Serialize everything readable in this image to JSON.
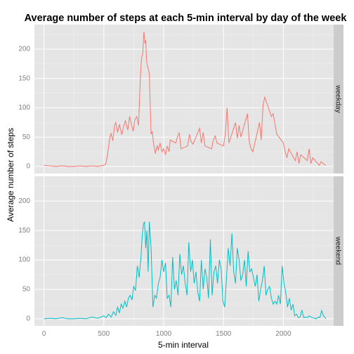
{
  "chart_data": {
    "type": "line",
    "title": "Average number of steps at each 5-min interval by day of the week",
    "xlabel": "5-min interval",
    "ylabel": "Average number of steps",
    "xlim": [
      -80,
      2420
    ],
    "ylim": [
      -12,
      242
    ],
    "x_ticks": [
      0,
      500,
      1000,
      1500,
      2000
    ],
    "y_ticks": [
      0,
      50,
      100,
      150,
      200
    ],
    "grid": true,
    "panels": [
      {
        "name": "weekday",
        "color": "#F8766D",
        "x": [
          0,
          50,
          100,
          150,
          200,
          250,
          300,
          350,
          400,
          450,
          500,
          515,
          530,
          550,
          560,
          575,
          590,
          600,
          615,
          630,
          650,
          665,
          680,
          700,
          715,
          730,
          745,
          760,
          775,
          790,
          805,
          815,
          825,
          835,
          845,
          850,
          855,
          860,
          870,
          880,
          895,
          905,
          915,
          930,
          945,
          955,
          970,
          985,
          1000,
          1015,
          1030,
          1045,
          1055,
          1100,
          1115,
          1130,
          1145,
          1200,
          1215,
          1230,
          1245,
          1300,
          1315,
          1330,
          1345,
          1400,
          1415,
          1430,
          1445,
          1500,
          1515,
          1530,
          1545,
          1600,
          1615,
          1630,
          1645,
          1700,
          1715,
          1730,
          1745,
          1800,
          1815,
          1830,
          1845,
          1900,
          1915,
          1930,
          1945,
          2000,
          2015,
          2030,
          2045,
          2100,
          2115,
          2130,
          2145,
          2200,
          2215,
          2230,
          2245,
          2300,
          2315,
          2330,
          2345,
          2355
        ],
        "values": [
          2,
          1,
          0,
          1,
          0,
          0,
          1,
          0,
          1,
          0,
          2,
          4,
          18,
          50,
          56,
          44,
          70,
          75,
          58,
          72,
          54,
          68,
          78,
          62,
          85,
          72,
          60,
          80,
          85,
          70,
          150,
          185,
          192,
          230,
          210,
          215,
          190,
          175,
          168,
          158,
          55,
          60,
          40,
          22,
          35,
          28,
          40,
          25,
          30,
          20,
          35,
          25,
          45,
          40,
          50,
          58,
          30,
          35,
          55,
          42,
          38,
          65,
          40,
          58,
          35,
          30,
          45,
          52,
          40,
          35,
          55,
          100,
          40,
          75,
          48,
          70,
          50,
          90,
          42,
          30,
          25,
          75,
          45,
          105,
          118,
          85,
          90,
          72,
          55,
          40,
          25,
          15,
          30,
          10,
          25,
          5,
          20,
          10,
          30,
          5,
          15,
          2,
          8,
          5,
          3,
          2
        ],
        "strip_label": "weekday"
      },
      {
        "name": "weekend",
        "color": "#00BFC4",
        "x": [
          0,
          50,
          100,
          150,
          200,
          250,
          300,
          350,
          400,
          450,
          500,
          520,
          540,
          560,
          580,
          600,
          615,
          630,
          645,
          660,
          675,
          690,
          705,
          720,
          735,
          750,
          765,
          780,
          795,
          810,
          820,
          830,
          840,
          850,
          860,
          870,
          880,
          895,
          910,
          925,
          940,
          955,
          970,
          985,
          1000,
          1015,
          1030,
          1045,
          1060,
          1075,
          1090,
          1105,
          1120,
          1135,
          1150,
          1165,
          1180,
          1195,
          1210,
          1225,
          1240,
          1255,
          1270,
          1285,
          1300,
          1315,
          1330,
          1345,
          1360,
          1375,
          1390,
          1405,
          1420,
          1435,
          1450,
          1465,
          1480,
          1495,
          1510,
          1525,
          1540,
          1555,
          1570,
          1585,
          1600,
          1615,
          1630,
          1645,
          1660,
          1675,
          1690,
          1705,
          1720,
          1735,
          1750,
          1765,
          1780,
          1795,
          1810,
          1825,
          1840,
          1855,
          1870,
          1885,
          1900,
          1915,
          1930,
          1945,
          1960,
          1975,
          1990,
          2005,
          2020,
          2035,
          2050,
          2065,
          2080,
          2095,
          2110,
          2125,
          2140,
          2155,
          2170,
          2185,
          2200,
          2215,
          2230,
          2245,
          2260,
          2275,
          2290,
          2305,
          2320,
          2335,
          2345,
          2355
        ],
        "values": [
          0,
          1,
          0,
          2,
          0,
          0,
          1,
          0,
          3,
          1,
          5,
          2,
          8,
          3,
          12,
          6,
          20,
          10,
          25,
          18,
          30,
          20,
          35,
          40,
          32,
          55,
          48,
          90,
          70,
          105,
          140,
          160,
          165,
          120,
          150,
          80,
          165,
          120,
          20,
          40,
          35,
          60,
          70,
          100,
          80,
          95,
          35,
          40,
          20,
          105,
          50,
          65,
          40,
          110,
          75,
          90,
          60,
          40,
          130,
          80,
          100,
          60,
          80,
          45,
          30,
          100,
          50,
          85,
          70,
          35,
          135,
          40,
          80,
          90,
          60,
          100,
          85,
          30,
          20,
          70,
          120,
          90,
          145,
          80,
          60,
          120,
          100,
          65,
          75,
          100,
          55,
          115,
          80,
          85,
          70,
          55,
          75,
          30,
          50,
          65,
          90,
          40,
          50,
          55,
          35,
          25,
          30,
          25,
          40,
          25,
          90,
          60,
          45,
          20,
          35,
          15,
          25,
          5,
          8,
          2,
          3,
          15,
          2,
          3,
          2,
          5,
          3,
          2,
          1,
          0,
          3,
          2,
          14,
          5,
          3,
          0
        ],
        "strip_label": "weekend"
      }
    ]
  }
}
